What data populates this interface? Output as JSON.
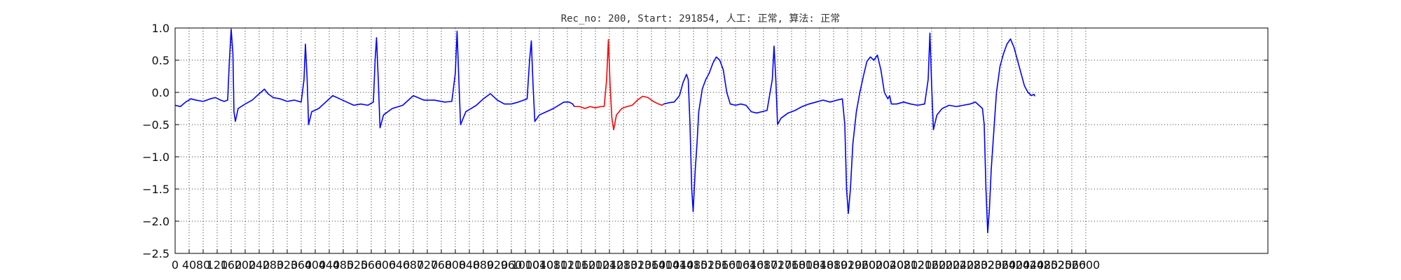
{
  "chart_data": {
    "type": "line",
    "title": "Rec_no: 200, Start: 291854, 人工: 正常, 算法: 正常",
    "xlabel": "",
    "ylabel": "",
    "xlim": [
      0,
      3120
    ],
    "ylim": [
      -2.5,
      1.0
    ],
    "grid": true,
    "yticks": [
      "1.0",
      "0.5",
      "0.0",
      "−0.5",
      "−1.0",
      "−1.5",
      "−2.0",
      "−2.5"
    ],
    "ytick_values": [
      1.0,
      0.5,
      0.0,
      -0.5,
      -1.0,
      -1.5,
      -2.0,
      -2.5
    ],
    "xticks": [
      "0",
      "40",
      "80",
      "120",
      "160",
      "200",
      "240",
      "280",
      "320",
      "360",
      "400",
      "440",
      "480",
      "520",
      "560",
      "600",
      "640",
      "680",
      "720",
      "760",
      "800",
      "840",
      "880",
      "920",
      "960",
      "1000",
      "1040",
      "1080",
      "1120",
      "1160",
      "1200",
      "1240",
      "1280",
      "1320",
      "1360",
      "1400",
      "1440",
      "1480",
      "1520",
      "1560",
      "1600",
      "1640",
      "1680",
      "1720",
      "1760",
      "1800",
      "1840",
      "1880",
      "1920",
      "1960",
      "2000",
      "2040",
      "2080",
      "2120",
      "2160",
      "2200",
      "2240",
      "2280",
      "2320",
      "2360",
      "2400",
      "2440",
      "2480",
      "2520",
      "2560",
      "2600"
    ],
    "xtick_values": [
      0,
      40,
      80,
      120,
      160,
      200,
      240,
      280,
      320,
      360,
      400,
      440,
      480,
      520,
      560,
      600,
      640,
      680,
      720,
      760,
      800,
      840,
      880,
      920,
      960,
      1000,
      1040,
      1080,
      1120,
      1160,
      1200,
      1240,
      1280,
      1320,
      1360,
      1400,
      1440,
      1480,
      1520,
      1560,
      1600,
      1640,
      1680,
      1720,
      1760,
      1800,
      1840,
      1880,
      1920,
      1960,
      2000,
      2040,
      2080,
      2120,
      2160,
      2200,
      2240,
      2280,
      2320,
      2360,
      2400,
      2440,
      2480,
      2520,
      2560,
      2600
    ],
    "series": [
      {
        "color": "#0000ff",
        "points": [
          [
            0,
            -0.2
          ],
          [
            15,
            -0.22
          ],
          [
            30,
            -0.15
          ],
          [
            45,
            -0.1
          ],
          [
            60,
            -0.12
          ],
          [
            80,
            -0.14
          ],
          [
            100,
            -0.1
          ],
          [
            115,
            -0.08
          ],
          [
            130,
            -0.12
          ],
          [
            140,
            -0.14
          ],
          [
            150,
            -0.12
          ],
          [
            155,
            0.5
          ],
          [
            160,
            0.98
          ],
          [
            165,
            0.6
          ],
          [
            168,
            -0.3
          ],
          [
            172,
            -0.45
          ],
          [
            180,
            -0.25
          ],
          [
            200,
            -0.18
          ],
          [
            220,
            -0.12
          ],
          [
            240,
            -0.02
          ],
          [
            255,
            0.05
          ],
          [
            265,
            -0.02
          ],
          [
            280,
            -0.08
          ],
          [
            300,
            -0.1
          ],
          [
            320,
            -0.14
          ],
          [
            340,
            -0.12
          ],
          [
            360,
            -0.15
          ],
          [
            368,
            0.2
          ],
          [
            372,
            0.75
          ],
          [
            377,
            0.2
          ],
          [
            381,
            -0.5
          ],
          [
            390,
            -0.3
          ],
          [
            410,
            -0.25
          ],
          [
            430,
            -0.15
          ],
          [
            450,
            -0.05
          ],
          [
            470,
            -0.1
          ],
          [
            490,
            -0.15
          ],
          [
            510,
            -0.2
          ],
          [
            530,
            -0.18
          ],
          [
            550,
            -0.2
          ],
          [
            566,
            -0.15
          ],
          [
            571,
            0.5
          ],
          [
            575,
            0.85
          ],
          [
            580,
            0.2
          ],
          [
            585,
            -0.55
          ],
          [
            595,
            -0.35
          ],
          [
            620,
            -0.25
          ],
          [
            650,
            -0.2
          ],
          [
            680,
            -0.05
          ],
          [
            710,
            -0.12
          ],
          [
            740,
            -0.12
          ],
          [
            770,
            -0.15
          ],
          [
            790,
            -0.14
          ],
          [
            800,
            0.3
          ],
          [
            805,
            0.95
          ],
          [
            810,
            0.2
          ],
          [
            815,
            -0.5
          ],
          [
            830,
            -0.3
          ],
          [
            860,
            -0.2
          ],
          [
            880,
            -0.1
          ],
          [
            900,
            -0.02
          ],
          [
            920,
            -0.12
          ],
          [
            940,
            -0.18
          ],
          [
            960,
            -0.18
          ],
          [
            980,
            -0.15
          ],
          [
            1005,
            -0.1
          ],
          [
            1012,
            0.5
          ],
          [
            1017,
            0.8
          ],
          [
            1022,
            0.1
          ],
          [
            1027,
            -0.45
          ],
          [
            1040,
            -0.35
          ],
          [
            1060,
            -0.3
          ],
          [
            1080,
            -0.25
          ],
          [
            1095,
            -0.2
          ],
          [
            1110,
            -0.15
          ],
          [
            1125,
            -0.15
          ],
          [
            1135,
            -0.18
          ],
          [
            1140,
            -0.22
          ]
        ]
      },
      {
        "color": "#ff0000",
        "points": [
          [
            1140,
            -0.22
          ],
          [
            1155,
            -0.22
          ],
          [
            1170,
            -0.25
          ],
          [
            1185,
            -0.22
          ],
          [
            1200,
            -0.24
          ],
          [
            1215,
            -0.22
          ],
          [
            1225,
            -0.22
          ],
          [
            1232,
            0.2
          ],
          [
            1237,
            0.82
          ],
          [
            1242,
            0.1
          ],
          [
            1247,
            -0.4
          ],
          [
            1252,
            -0.58
          ],
          [
            1260,
            -0.35
          ],
          [
            1275,
            -0.25
          ],
          [
            1290,
            -0.22
          ],
          [
            1305,
            -0.2
          ],
          [
            1320,
            -0.12
          ],
          [
            1335,
            -0.06
          ],
          [
            1350,
            -0.08
          ],
          [
            1365,
            -0.14
          ],
          [
            1380,
            -0.18
          ],
          [
            1390,
            -0.2
          ],
          [
            1395,
            -0.18
          ]
        ]
      },
      {
        "color": "#0000ff",
        "points": [
          [
            1395,
            -0.18
          ],
          [
            1410,
            -0.16
          ],
          [
            1425,
            -0.15
          ],
          [
            1440,
            -0.05
          ],
          [
            1450,
            0.15
          ],
          [
            1460,
            0.28
          ],
          [
            1465,
            0.2
          ],
          [
            1470,
            -0.5
          ],
          [
            1475,
            -1.5
          ],
          [
            1479,
            -1.85
          ],
          [
            1485,
            -1.2
          ],
          [
            1490,
            -0.8
          ],
          [
            1495,
            -0.3
          ],
          [
            1505,
            0.05
          ],
          [
            1515,
            0.2
          ],
          [
            1525,
            0.3
          ],
          [
            1535,
            0.45
          ],
          [
            1545,
            0.55
          ],
          [
            1555,
            0.5
          ],
          [
            1565,
            0.35
          ],
          [
            1575,
            0.0
          ],
          [
            1585,
            -0.18
          ],
          [
            1600,
            -0.2
          ],
          [
            1615,
            -0.18
          ],
          [
            1630,
            -0.2
          ],
          [
            1645,
            -0.3
          ],
          [
            1660,
            -0.32
          ],
          [
            1675,
            -0.3
          ],
          [
            1690,
            -0.28
          ],
          [
            1705,
            0.2
          ],
          [
            1710,
            0.72
          ],
          [
            1715,
            0.2
          ],
          [
            1720,
            -0.5
          ],
          [
            1730,
            -0.4
          ],
          [
            1750,
            -0.32
          ],
          [
            1770,
            -0.28
          ],
          [
            1790,
            -0.22
          ],
          [
            1810,
            -0.18
          ],
          [
            1830,
            -0.15
          ],
          [
            1850,
            -0.12
          ],
          [
            1870,
            -0.15
          ],
          [
            1890,
            -0.12
          ],
          [
            1905,
            -0.1
          ],
          [
            1912,
            -0.5
          ],
          [
            1917,
            -1.5
          ],
          [
            1922,
            -1.88
          ],
          [
            1928,
            -1.5
          ],
          [
            1935,
            -0.8
          ],
          [
            1945,
            -0.3
          ],
          [
            1955,
            0.0
          ],
          [
            1965,
            0.25
          ],
          [
            1975,
            0.48
          ],
          [
            1985,
            0.55
          ],
          [
            1995,
            0.5
          ],
          [
            2005,
            0.58
          ],
          [
            2015,
            0.35
          ],
          [
            2025,
            0.0
          ],
          [
            2035,
            -0.1
          ],
          [
            2040,
            -0.05
          ],
          [
            2045,
            -0.18
          ],
          [
            2060,
            -0.18
          ],
          [
            2080,
            -0.15
          ],
          [
            2100,
            -0.18
          ],
          [
            2120,
            -0.2
          ],
          [
            2140,
            -0.18
          ],
          [
            2150,
            0.2
          ],
          [
            2155,
            0.92
          ],
          [
            2160,
            0.1
          ],
          [
            2165,
            -0.58
          ],
          [
            2175,
            -0.35
          ],
          [
            2190,
            -0.25
          ],
          [
            2210,
            -0.2
          ],
          [
            2230,
            -0.22
          ],
          [
            2250,
            -0.2
          ],
          [
            2270,
            -0.18
          ],
          [
            2285,
            -0.15
          ],
          [
            2295,
            -0.2
          ],
          [
            2305,
            -0.25
          ],
          [
            2310,
            -0.5
          ],
          [
            2315,
            -1.5
          ],
          [
            2320,
            -2.18
          ],
          [
            2325,
            -1.8
          ],
          [
            2330,
            -1.2
          ],
          [
            2335,
            -0.8
          ],
          [
            2340,
            -0.4
          ],
          [
            2345,
            0.0
          ],
          [
            2350,
            0.2
          ],
          [
            2355,
            0.4
          ],
          [
            2365,
            0.6
          ],
          [
            2375,
            0.75
          ],
          [
            2385,
            0.83
          ],
          [
            2395,
            0.7
          ],
          [
            2405,
            0.5
          ],
          [
            2415,
            0.3
          ],
          [
            2425,
            0.1
          ],
          [
            2435,
            0.0
          ],
          [
            2445,
            -0.05
          ],
          [
            2452,
            -0.03
          ],
          [
            2455,
            -0.06
          ]
        ]
      }
    ]
  }
}
